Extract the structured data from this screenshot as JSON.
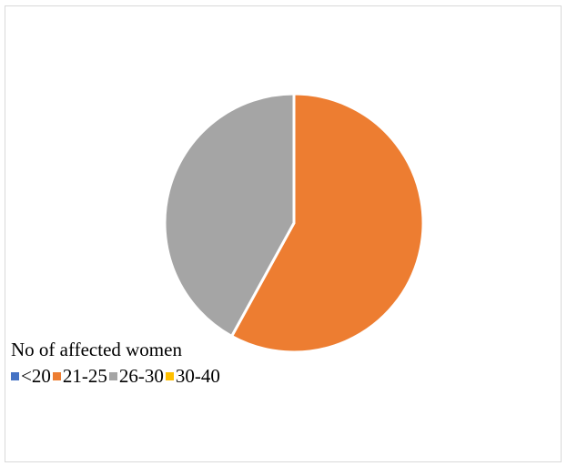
{
  "chart_data": {
    "type": "pie",
    "title": "",
    "caption": "No of affected women",
    "categories": [
      "<20",
      "21-25",
      "26-30",
      "30-40"
    ],
    "values": [
      0,
      58,
      42,
      0
    ],
    "colors": [
      "#4472c4",
      "#ed7d31",
      "#a5a5a5",
      "#ffc000"
    ],
    "legend_position": "bottom-left"
  }
}
